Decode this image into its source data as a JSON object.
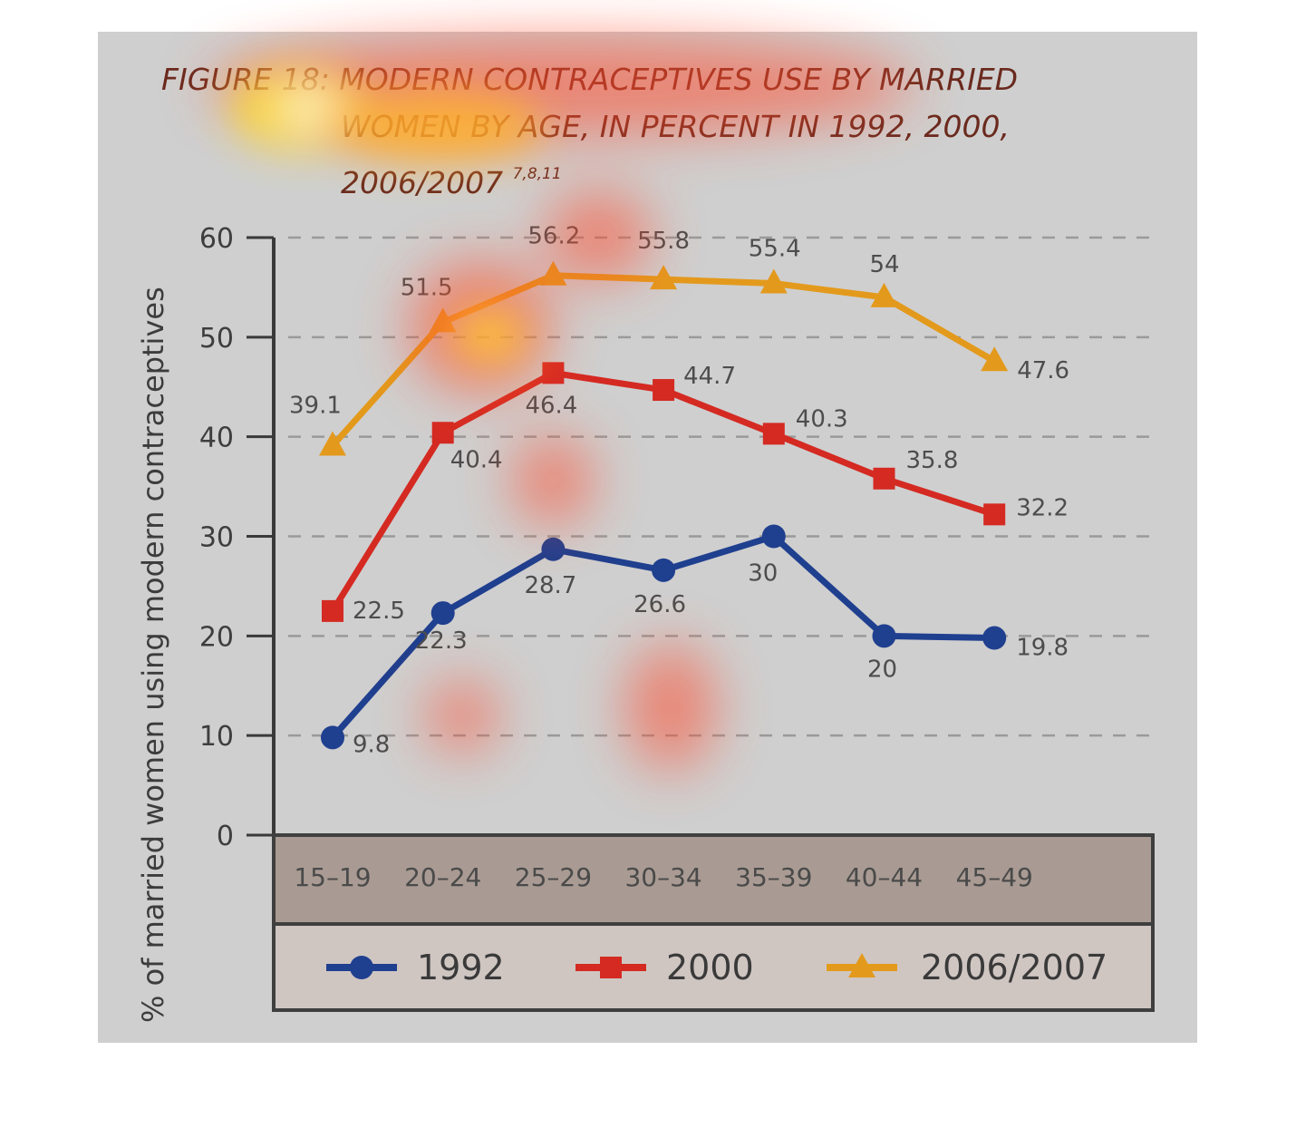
{
  "title_line1": "FIGURE 18: MODERN CONTRACEPTIVES USE BY MARRIED",
  "title_line2": "WOMEN BY AGE, IN PERCENT IN 1992, 2000,",
  "title_line3": "2006/2007",
  "title_refs": "7,8,11",
  "chart_data": {
    "type": "line",
    "title": "FIGURE 18: MODERN CONTRACEPTIVES USE BY MARRIED WOMEN BY AGE, IN PERCENT IN 1992, 2000, 2006/2007",
    "xlabel": "",
    "ylabel": "% of married women using modern contraceptives",
    "ylim": [
      0,
      60
    ],
    "yticks": [
      "0",
      "10",
      "20",
      "30",
      "40",
      "50",
      "60"
    ],
    "categories": [
      "15-19",
      "20-24",
      "25-29",
      "30-34",
      "35-39",
      "40-44",
      "45-49"
    ],
    "grid": "horizontal dashed",
    "legend_position": "bottom",
    "series": [
      {
        "name": "1992",
        "color": "#1f3f8f",
        "marker": "circle",
        "values": [
          9.8,
          22.3,
          28.7,
          26.6,
          30,
          20,
          19.8
        ]
      },
      {
        "name": "2000",
        "color": "#d42a22",
        "marker": "square",
        "values": [
          22.5,
          40.4,
          46.4,
          44.7,
          40.3,
          35.8,
          32.2
        ]
      },
      {
        "name": "2006/2007",
        "color": "#e39a1c",
        "marker": "triangle",
        "values": [
          39.1,
          51.5,
          56.2,
          55.8,
          55.4,
          54,
          47.6
        ]
      }
    ]
  }
}
